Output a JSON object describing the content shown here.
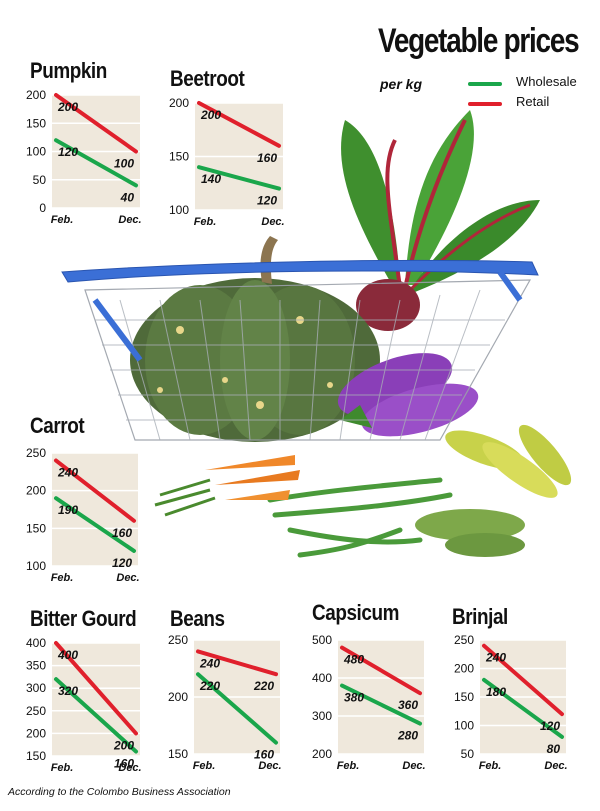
{
  "title": "Vegetable prices",
  "subtitle": "per kg",
  "legend": {
    "wholesale": "Wholesale",
    "retail": "Retail"
  },
  "colors": {
    "wholesale": "#1aa64b",
    "retail": "#e0202c",
    "panel": "#efe8dc",
    "grid": "#ffffff"
  },
  "footnote": "According to the Colombo Business Association",
  "chart_data": [
    {
      "type": "line",
      "title": "Pumpkin",
      "categories": [
        "Feb.",
        "Dec."
      ],
      "ylim": [
        0,
        200
      ],
      "yticks": [
        "0",
        "50",
        "100",
        "150",
        "200"
      ],
      "series": [
        {
          "name": "Wholesale",
          "values": [
            120,
            40
          ]
        },
        {
          "name": "Retail",
          "values": [
            200,
            100
          ]
        }
      ]
    },
    {
      "type": "line",
      "title": "Beetroot",
      "categories": [
        "Feb.",
        "Dec."
      ],
      "ylim": [
        100,
        200
      ],
      "yticks": [
        "100",
        "150",
        "200"
      ],
      "series": [
        {
          "name": "Wholesale",
          "values": [
            140,
            120
          ]
        },
        {
          "name": "Retail",
          "values": [
            200,
            160
          ]
        }
      ]
    },
    {
      "type": "line",
      "title": "Carrot",
      "categories": [
        "Feb.",
        "Dec."
      ],
      "ylim": [
        100,
        250
      ],
      "yticks": [
        "100",
        "150",
        "200",
        "250"
      ],
      "series": [
        {
          "name": "Wholesale",
          "values": [
            190,
            120
          ]
        },
        {
          "name": "Retail",
          "values": [
            240,
            160
          ]
        }
      ]
    },
    {
      "type": "line",
      "title": "Bitter Gourd",
      "categories": [
        "Feb.",
        "Dec."
      ],
      "ylim": [
        150,
        400
      ],
      "yticks": [
        "150",
        "200",
        "250",
        "300",
        "350",
        "400"
      ],
      "series": [
        {
          "name": "Wholesale",
          "values": [
            320,
            160
          ]
        },
        {
          "name": "Retail",
          "values": [
            400,
            200
          ]
        }
      ]
    },
    {
      "type": "line",
      "title": "Beans",
      "categories": [
        "Feb.",
        "Dec."
      ],
      "ylim": [
        150,
        250
      ],
      "yticks": [
        "150",
        "200",
        "250"
      ],
      "series": [
        {
          "name": "Wholesale",
          "values": [
            220,
            160
          ]
        },
        {
          "name": "Retail",
          "values": [
            240,
            220
          ]
        }
      ]
    },
    {
      "type": "line",
      "title": "Capsicum",
      "categories": [
        "Feb.",
        "Dec."
      ],
      "ylim": [
        200,
        500
      ],
      "yticks": [
        "200",
        "300",
        "400",
        "500"
      ],
      "series": [
        {
          "name": "Wholesale",
          "values": [
            380,
            280
          ]
        },
        {
          "name": "Retail",
          "values": [
            480,
            360
          ]
        }
      ]
    },
    {
      "type": "line",
      "title": "Brinjal",
      "categories": [
        "Feb.",
        "Dec."
      ],
      "ylim": [
        50,
        250
      ],
      "yticks": [
        "50",
        "100",
        "150",
        "200",
        "250"
      ],
      "series": [
        {
          "name": "Wholesale",
          "values": [
            180,
            80
          ]
        },
        {
          "name": "Retail",
          "values": [
            240,
            120
          ]
        }
      ]
    }
  ]
}
